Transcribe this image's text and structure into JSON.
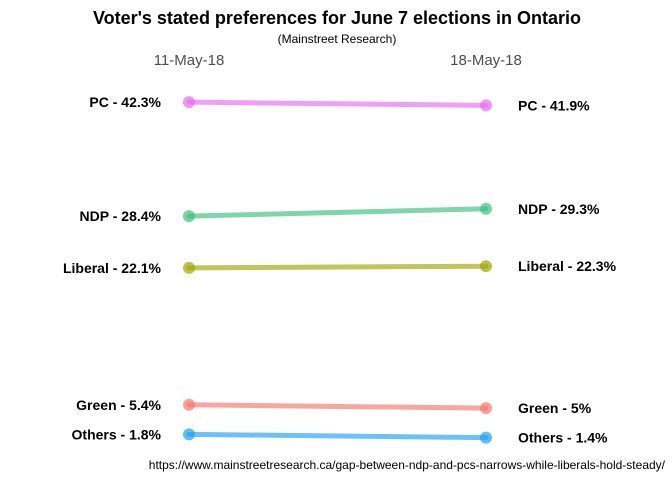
{
  "chart_data": {
    "type": "line",
    "title": "Voter's stated preferences for June 7 elections in Ontario",
    "subtitle": "(Mainstreet Research)",
    "caption": "https://www.mainstreetresearch.ca/gap-between-ndp-and-pcs-narrows-while-liberals-hold-steady/",
    "x": [
      "11-May-18",
      "18-May-18"
    ],
    "ylim": [
      0.5,
      45
    ],
    "grid": false,
    "legend": "none",
    "series": [
      {
        "key": "pc",
        "values": [
          42.3,
          41.9
        ],
        "labels": [
          "PC - 42.3%",
          "PC - 41.9%"
        ],
        "color": "#E76BF3"
      },
      {
        "key": "ndp",
        "values": [
          28.4,
          29.3
        ],
        "labels": [
          "NDP - 28.4%",
          "NDP - 29.3%"
        ],
        "color": "#39C27B"
      },
      {
        "key": "liberal",
        "values": [
          22.1,
          22.3
        ],
        "labels": [
          "Liberal - 22.1%",
          "Liberal - 22.3%"
        ],
        "color": "#A3A500"
      },
      {
        "key": "green",
        "values": [
          5.4,
          5
        ],
        "labels": [
          "Green - 5.4%",
          "Green - 5%"
        ],
        "color": "#F8766D"
      },
      {
        "key": "others",
        "values": [
          1.8,
          1.4
        ],
        "labels": [
          "Others - 1.8%",
          "Others - 1.4%"
        ],
        "color": "#1DA1F2"
      }
    ]
  }
}
